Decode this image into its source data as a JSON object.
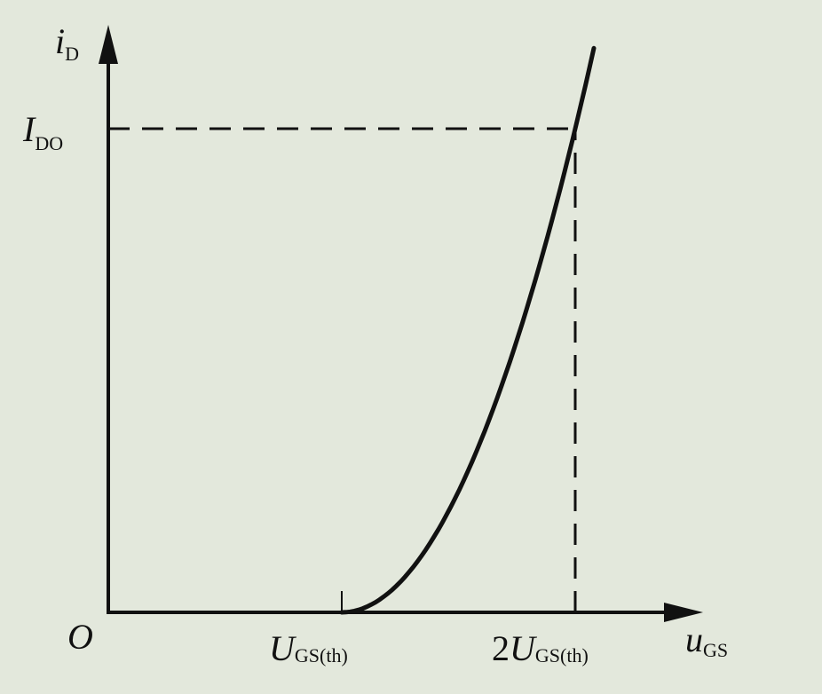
{
  "chart_data": {
    "type": "line",
    "title": "",
    "x_axis": {
      "label_main": "u",
      "label_sub": "GS",
      "origin_label": "O",
      "ticks": [
        {
          "main": "U",
          "sub": "GS(th)",
          "multiple": 1
        },
        {
          "prefix": "2",
          "main": "U",
          "sub": "GS(th)",
          "multiple": 2
        }
      ]
    },
    "y_axis": {
      "label_main": "i",
      "label_sub": "D",
      "ticks": [
        {
          "main": "I",
          "sub": "DO",
          "multiple": 1
        }
      ]
    },
    "series": [
      {
        "equation": "iD = IDO * (uGS / UGS(th) - 1)^2",
        "x_start": 1,
        "x_end": 2.08
      }
    ],
    "reference_lines": [
      {
        "type": "vertical",
        "x": 2,
        "style": "dashed"
      },
      {
        "type": "horizontal",
        "y": 1,
        "style": "dashed"
      }
    ],
    "colors": {
      "background": "#e3e8dc",
      "ink": "#111111"
    }
  }
}
